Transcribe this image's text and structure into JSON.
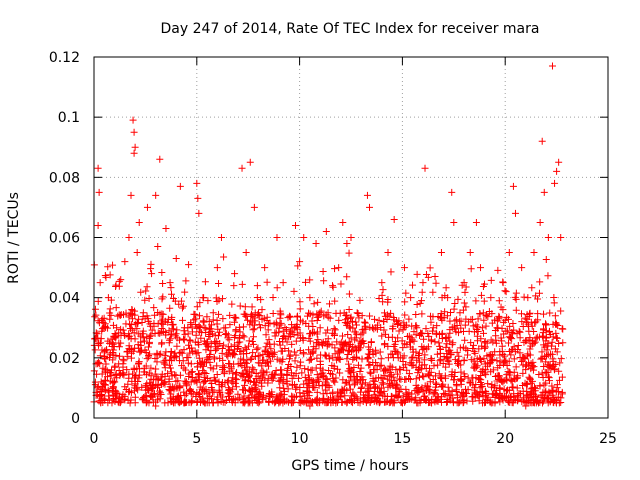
{
  "chart_data": {
    "type": "scatter",
    "title": "Day 247 of 2014, Rate Of TEC Index for receiver mara",
    "xlabel": "GPS time / hours",
    "ylabel": "ROTI / TECUs",
    "xlim": [
      0,
      25
    ],
    "ylim": [
      0,
      0.12
    ],
    "x_ticks": [
      0,
      5,
      10,
      15,
      20,
      25
    ],
    "x_tick_labels": [
      "0",
      "5",
      "10",
      "15",
      "20",
      "25"
    ],
    "y_ticks": [
      0,
      0.02,
      0.04,
      0.06,
      0.08,
      0.1,
      0.12
    ],
    "y_tick_labels": [
      "0",
      "0.02",
      "0.04",
      "0.06",
      "0.08",
      "0.1",
      "0.12"
    ],
    "grid": true,
    "marker": "plus",
    "color": "#ff0000",
    "series": [
      {
        "name": "ROTI",
        "points": [
          [
            0.1,
            0.018
          ],
          [
            0.2,
            0.064
          ],
          [
            0.2,
            0.083
          ],
          [
            0.25,
            0.075
          ],
          [
            0.3,
            0.045
          ],
          [
            0.15,
            0.028
          ],
          [
            0.35,
            0.012
          ],
          [
            0.4,
            0.033
          ],
          [
            0.5,
            0.022
          ],
          [
            0.55,
            0.009
          ],
          [
            0.7,
            0.04
          ],
          [
            0.8,
            0.015
          ],
          [
            0.9,
            0.025
          ],
          [
            1.0,
            0.012
          ],
          [
            1.1,
            0.03
          ],
          [
            1.2,
            0.018
          ],
          [
            1.3,
            0.046
          ],
          [
            1.5,
            0.052
          ],
          [
            1.6,
            0.022
          ],
          [
            1.7,
            0.06
          ],
          [
            1.8,
            0.074
          ],
          [
            1.9,
            0.099
          ],
          [
            1.95,
            0.095
          ],
          [
            2.0,
            0.09
          ],
          [
            1.95,
            0.088
          ],
          [
            2.1,
            0.055
          ],
          [
            2.2,
            0.065
          ],
          [
            2.4,
            0.035
          ],
          [
            2.6,
            0.07
          ],
          [
            2.8,
            0.048
          ],
          [
            3.0,
            0.074
          ],
          [
            3.1,
            0.057
          ],
          [
            3.2,
            0.086
          ],
          [
            3.3,
            0.025
          ],
          [
            3.5,
            0.063
          ],
          [
            3.7,
            0.045
          ],
          [
            3.9,
            0.02
          ],
          [
            4.0,
            0.053
          ],
          [
            4.2,
            0.077
          ],
          [
            4.4,
            0.03
          ],
          [
            4.6,
            0.051
          ],
          [
            4.8,
            0.022
          ],
          [
            5.0,
            0.078
          ],
          [
            5.05,
            0.073
          ],
          [
            5.1,
            0.068
          ],
          [
            5.3,
            0.04
          ],
          [
            5.5,
            0.02
          ],
          [
            5.8,
            0.035
          ],
          [
            6.0,
            0.05
          ],
          [
            6.2,
            0.06
          ],
          [
            6.4,
            0.03
          ],
          [
            6.6,
            0.018
          ],
          [
            6.8,
            0.044
          ],
          [
            7.0,
            0.025
          ],
          [
            7.2,
            0.083
          ],
          [
            7.4,
            0.055
          ],
          [
            7.6,
            0.085
          ],
          [
            7.8,
            0.07
          ],
          [
            8.0,
            0.035
          ],
          [
            8.3,
            0.05
          ],
          [
            8.6,
            0.023
          ],
          [
            8.9,
            0.06
          ],
          [
            9.2,
            0.045
          ],
          [
            9.5,
            0.028
          ],
          [
            9.8,
            0.064
          ],
          [
            10.0,
            0.052
          ],
          [
            10.2,
            0.06
          ],
          [
            10.5,
            0.04
          ],
          [
            10.8,
            0.058
          ],
          [
            11.0,
            0.03
          ],
          [
            11.3,
            0.062
          ],
          [
            11.6,
            0.044
          ],
          [
            11.9,
            0.05
          ],
          [
            12.1,
            0.065
          ],
          [
            12.3,
            0.058
          ],
          [
            12.5,
            0.06
          ],
          [
            12.8,
            0.035
          ],
          [
            13.0,
            0.025
          ],
          [
            13.3,
            0.074
          ],
          [
            13.4,
            0.07
          ],
          [
            13.7,
            0.03
          ],
          [
            14.0,
            0.045
          ],
          [
            14.3,
            0.055
          ],
          [
            14.6,
            0.066
          ],
          [
            14.9,
            0.02
          ],
          [
            15.1,
            0.05
          ],
          [
            15.4,
            0.04
          ],
          [
            15.7,
            0.03
          ],
          [
            16.0,
            0.045
          ],
          [
            16.1,
            0.083
          ],
          [
            16.5,
            0.03
          ],
          [
            16.9,
            0.055
          ],
          [
            17.2,
            0.04
          ],
          [
            17.4,
            0.075
          ],
          [
            17.5,
            0.065
          ],
          [
            17.8,
            0.035
          ],
          [
            18.0,
            0.045
          ],
          [
            18.3,
            0.055
          ],
          [
            18.6,
            0.065
          ],
          [
            18.8,
            0.05
          ],
          [
            19.0,
            0.025
          ],
          [
            19.3,
            0.04
          ],
          [
            19.6,
            0.03
          ],
          [
            19.9,
            0.045
          ],
          [
            20.2,
            0.055
          ],
          [
            20.4,
            0.077
          ],
          [
            20.5,
            0.068
          ],
          [
            20.8,
            0.05
          ],
          [
            21.1,
            0.04
          ],
          [
            21.4,
            0.055
          ],
          [
            21.7,
            0.065
          ],
          [
            21.8,
            0.092
          ],
          [
            21.9,
            0.075
          ],
          [
            22.1,
            0.06
          ],
          [
            22.3,
            0.117
          ],
          [
            22.4,
            0.078
          ],
          [
            22.5,
            0.082
          ],
          [
            22.6,
            0.085
          ],
          [
            22.7,
            0.06
          ],
          [
            22.8,
            0.025
          ],
          [
            1.5,
            0.006
          ],
          [
            3.0,
            0.004
          ],
          [
            4.5,
            0.008
          ],
          [
            6.0,
            0.007
          ],
          [
            7.5,
            0.005
          ],
          [
            9.0,
            0.006
          ],
          [
            10.5,
            0.004
          ],
          [
            12.0,
            0.007
          ],
          [
            13.5,
            0.006
          ],
          [
            15.0,
            0.005
          ],
          [
            16.5,
            0.008
          ],
          [
            18.0,
            0.006
          ],
          [
            19.5,
            0.005
          ],
          [
            21.0,
            0.004
          ],
          [
            22.5,
            0.006
          ]
        ]
      }
    ],
    "background_cloud": {
      "x_range": [
        0,
        22.8
      ],
      "typical_range": [
        0.005,
        0.035
      ],
      "note": "dense field of points across the full time range"
    }
  }
}
